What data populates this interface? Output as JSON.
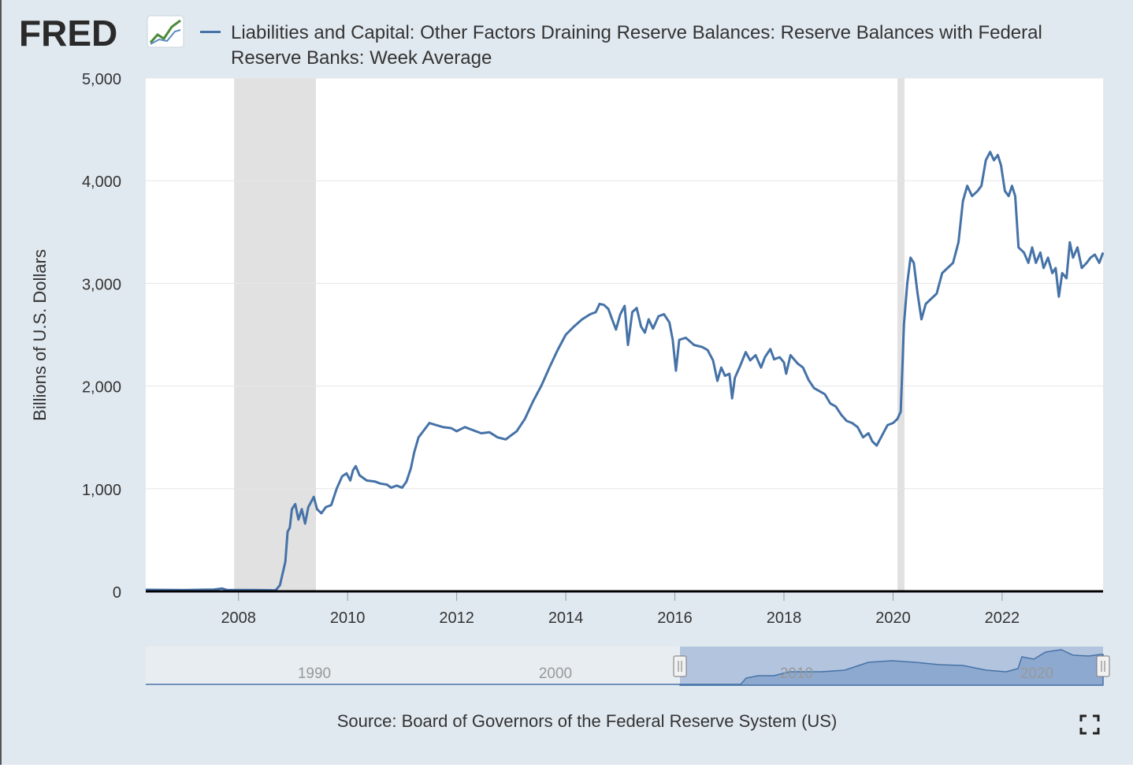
{
  "header": {
    "logo_text": "FRED",
    "title": "Liabilities and Capital: Other Factors Draining Reserve Balances: Reserve Balances with Federal Reserve Banks: Week Average"
  },
  "footer": {
    "source": "Source: Board of Governors of the Federal Reserve System (US)",
    "fullscreen_icon": "fullscreen-icon"
  },
  "colors": {
    "series": "#4572a7",
    "recession": "#e1e1e1",
    "background": "#e1e9f0",
    "plot": "#ffffff"
  },
  "chart_data": {
    "type": "line",
    "title": "Liabilities and Capital: Other Factors Draining Reserve Balances: Reserve Balances with Federal Reserve Banks: Week Average",
    "xlabel": "",
    "ylabel": "Billions of U.S. Dollars",
    "ylim": [
      0,
      5000
    ],
    "xlim": [
      2006.3,
      2023.85
    ],
    "yticks": [
      "0",
      "1,000",
      "2,000",
      "3,000",
      "4,000",
      "5,000"
    ],
    "xticks": [
      "2008",
      "2010",
      "2012",
      "2014",
      "2016",
      "2018",
      "2020",
      "2022"
    ],
    "grid": true,
    "legend": "top",
    "recessions": [
      [
        2007.92,
        2009.42
      ],
      [
        2020.08,
        2020.21
      ]
    ],
    "series": [
      {
        "name": "Liabilities and Capital: Other Factors Draining Reserve Balances: Reserve Balances with Federal Reserve Banks: Week Average",
        "points": [
          [
            2006.3,
            15
          ],
          [
            2007.0,
            12
          ],
          [
            2007.55,
            18
          ],
          [
            2007.7,
            28
          ],
          [
            2007.8,
            12
          ],
          [
            2008.0,
            14
          ],
          [
            2008.4,
            12
          ],
          [
            2008.68,
            10
          ],
          [
            2008.76,
            60
          ],
          [
            2008.82,
            200
          ],
          [
            2008.86,
            290
          ],
          [
            2008.9,
            580
          ],
          [
            2008.94,
            620
          ],
          [
            2008.98,
            800
          ],
          [
            2009.04,
            850
          ],
          [
            2009.1,
            700
          ],
          [
            2009.16,
            800
          ],
          [
            2009.22,
            660
          ],
          [
            2009.28,
            820
          ],
          [
            2009.34,
            880
          ],
          [
            2009.38,
            920
          ],
          [
            2009.44,
            800
          ],
          [
            2009.52,
            760
          ],
          [
            2009.6,
            820
          ],
          [
            2009.7,
            840
          ],
          [
            2009.8,
            1000
          ],
          [
            2009.9,
            1120
          ],
          [
            2009.98,
            1150
          ],
          [
            2010.05,
            1080
          ],
          [
            2010.1,
            1180
          ],
          [
            2010.15,
            1220
          ],
          [
            2010.22,
            1130
          ],
          [
            2010.35,
            1080
          ],
          [
            2010.5,
            1070
          ],
          [
            2010.6,
            1050
          ],
          [
            2010.72,
            1040
          ],
          [
            2010.8,
            1010
          ],
          [
            2010.9,
            1030
          ],
          [
            2011.0,
            1010
          ],
          [
            2011.08,
            1070
          ],
          [
            2011.16,
            1200
          ],
          [
            2011.22,
            1350
          ],
          [
            2011.3,
            1500
          ],
          [
            2011.4,
            1570
          ],
          [
            2011.5,
            1640
          ],
          [
            2011.62,
            1620
          ],
          [
            2011.75,
            1600
          ],
          [
            2011.9,
            1590
          ],
          [
            2012.0,
            1560
          ],
          [
            2012.15,
            1600
          ],
          [
            2012.3,
            1570
          ],
          [
            2012.45,
            1540
          ],
          [
            2012.6,
            1550
          ],
          [
            2012.75,
            1500
          ],
          [
            2012.9,
            1480
          ],
          [
            2013.0,
            1520
          ],
          [
            2013.1,
            1560
          ],
          [
            2013.25,
            1680
          ],
          [
            2013.4,
            1850
          ],
          [
            2013.55,
            2000
          ],
          [
            2013.7,
            2180
          ],
          [
            2013.85,
            2350
          ],
          [
            2014.0,
            2500
          ],
          [
            2014.15,
            2580
          ],
          [
            2014.3,
            2650
          ],
          [
            2014.45,
            2700
          ],
          [
            2014.55,
            2720
          ],
          [
            2014.62,
            2800
          ],
          [
            2014.7,
            2790
          ],
          [
            2014.78,
            2750
          ],
          [
            2014.85,
            2650
          ],
          [
            2014.92,
            2550
          ],
          [
            2015.0,
            2700
          ],
          [
            2015.08,
            2780
          ],
          [
            2015.14,
            2400
          ],
          [
            2015.22,
            2720
          ],
          [
            2015.3,
            2760
          ],
          [
            2015.38,
            2580
          ],
          [
            2015.45,
            2520
          ],
          [
            2015.52,
            2650
          ],
          [
            2015.6,
            2560
          ],
          [
            2015.7,
            2680
          ],
          [
            2015.8,
            2700
          ],
          [
            2015.9,
            2620
          ],
          [
            2015.96,
            2450
          ],
          [
            2016.02,
            2150
          ],
          [
            2016.08,
            2450
          ],
          [
            2016.2,
            2470
          ],
          [
            2016.35,
            2400
          ],
          [
            2016.5,
            2380
          ],
          [
            2016.6,
            2350
          ],
          [
            2016.7,
            2250
          ],
          [
            2016.78,
            2050
          ],
          [
            2016.85,
            2180
          ],
          [
            2016.92,
            2100
          ],
          [
            2017.0,
            2120
          ],
          [
            2017.05,
            1880
          ],
          [
            2017.1,
            2080
          ],
          [
            2017.2,
            2200
          ],
          [
            2017.3,
            2330
          ],
          [
            2017.38,
            2250
          ],
          [
            2017.48,
            2300
          ],
          [
            2017.58,
            2180
          ],
          [
            2017.65,
            2280
          ],
          [
            2017.75,
            2360
          ],
          [
            2017.82,
            2260
          ],
          [
            2017.92,
            2280
          ],
          [
            2018.0,
            2230
          ],
          [
            2018.04,
            2120
          ],
          [
            2018.12,
            2300
          ],
          [
            2018.25,
            2220
          ],
          [
            2018.35,
            2180
          ],
          [
            2018.45,
            2060
          ],
          [
            2018.55,
            1980
          ],
          [
            2018.65,
            1950
          ],
          [
            2018.75,
            1920
          ],
          [
            2018.85,
            1830
          ],
          [
            2018.95,
            1800
          ],
          [
            2019.05,
            1720
          ],
          [
            2019.15,
            1660
          ],
          [
            2019.25,
            1640
          ],
          [
            2019.35,
            1600
          ],
          [
            2019.45,
            1500
          ],
          [
            2019.55,
            1540
          ],
          [
            2019.62,
            1460
          ],
          [
            2019.7,
            1420
          ],
          [
            2019.8,
            1520
          ],
          [
            2019.9,
            1620
          ],
          [
            2020.0,
            1640
          ],
          [
            2020.08,
            1680
          ],
          [
            2020.14,
            1750
          ],
          [
            2020.2,
            2600
          ],
          [
            2020.26,
            3000
          ],
          [
            2020.32,
            3250
          ],
          [
            2020.38,
            3200
          ],
          [
            2020.45,
            2900
          ],
          [
            2020.52,
            2650
          ],
          [
            2020.6,
            2800
          ],
          [
            2020.7,
            2850
          ],
          [
            2020.8,
            2900
          ],
          [
            2020.9,
            3100
          ],
          [
            2021.0,
            3150
          ],
          [
            2021.1,
            3200
          ],
          [
            2021.2,
            3400
          ],
          [
            2021.28,
            3800
          ],
          [
            2021.36,
            3950
          ],
          [
            2021.45,
            3850
          ],
          [
            2021.55,
            3900
          ],
          [
            2021.62,
            3950
          ],
          [
            2021.7,
            4200
          ],
          [
            2021.78,
            4280
          ],
          [
            2021.85,
            4200
          ],
          [
            2021.92,
            4250
          ],
          [
            2021.98,
            4150
          ],
          [
            2022.05,
            3900
          ],
          [
            2022.12,
            3850
          ],
          [
            2022.18,
            3950
          ],
          [
            2022.24,
            3850
          ],
          [
            2022.3,
            3350
          ],
          [
            2022.4,
            3300
          ],
          [
            2022.48,
            3200
          ],
          [
            2022.55,
            3350
          ],
          [
            2022.62,
            3200
          ],
          [
            2022.7,
            3300
          ],
          [
            2022.76,
            3150
          ],
          [
            2022.84,
            3250
          ],
          [
            2022.92,
            3100
          ],
          [
            2022.98,
            3150
          ],
          [
            2023.04,
            2870
          ],
          [
            2023.1,
            3100
          ],
          [
            2023.18,
            3050
          ],
          [
            2023.24,
            3400
          ],
          [
            2023.3,
            3250
          ],
          [
            2023.38,
            3350
          ],
          [
            2023.46,
            3150
          ],
          [
            2023.55,
            3200
          ],
          [
            2023.62,
            3250
          ],
          [
            2023.7,
            3280
          ],
          [
            2023.78,
            3200
          ],
          [
            2023.85,
            3300
          ]
        ]
      }
    ],
    "navigator": {
      "labels": [
        "1990",
        "2000",
        "2010",
        "2020"
      ]
    }
  }
}
